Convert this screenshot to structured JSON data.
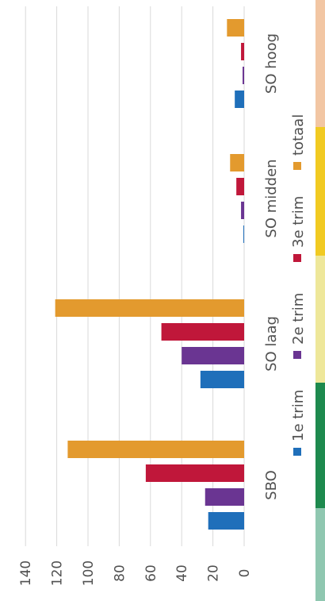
{
  "chart_data": {
    "type": "bar",
    "orientation": "horizontal-rotated",
    "categories": [
      "SBO",
      "SO laag",
      "SO midden",
      "SO hoog"
    ],
    "series": [
      {
        "name": "1e trim",
        "color": "#1f6fba",
        "values": [
          23,
          28,
          0.5,
          6
        ]
      },
      {
        "name": "2e trim",
        "color": "#6a3592",
        "values": [
          25,
          40,
          2,
          1
        ]
      },
      {
        "name": "3e trim",
        "color": "#c0173a",
        "values": [
          63,
          53,
          5,
          2
        ]
      },
      {
        "name": "totaal",
        "color": "#e39a2e",
        "values": [
          113,
          121,
          9,
          11
        ]
      }
    ],
    "value_axis": {
      "min": 0,
      "max": 140,
      "step": 20,
      "ticks": [
        "0",
        "20",
        "40",
        "60",
        "80",
        "100",
        "120",
        "140"
      ]
    },
    "grid": true,
    "legend_position": "bottom"
  },
  "side_strip": {
    "colors": [
      "#f2c6a3",
      "#f1ca22",
      "#eee79a",
      "#1e8a4e",
      "#8fc7b0"
    ]
  }
}
